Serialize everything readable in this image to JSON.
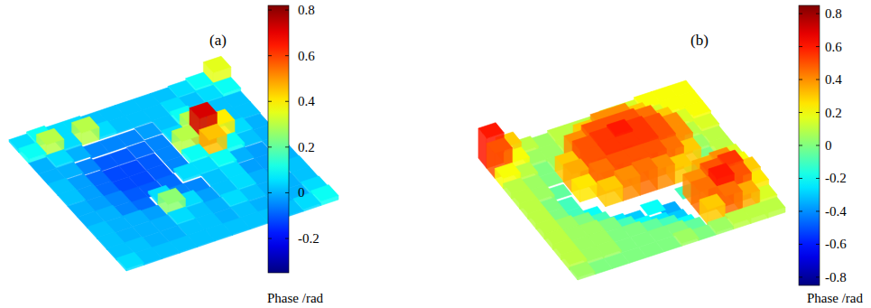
{
  "chart_data": [
    {
      "type": "surface",
      "label": "(a)",
      "cells": [
        [
          0.05,
          0.1,
          0.05,
          0.05,
          0.02,
          0.02,
          0.02,
          0.02,
          0.02,
          0.05,
          0.1,
          0.35
        ],
        [
          0.1,
          0.3,
          0.05,
          0.3,
          0.05,
          0.02,
          0.02,
          0.02,
          0.05,
          0.02,
          0.05,
          0.1
        ],
        [
          0.0,
          0.05,
          0.0,
          -0.05,
          -0.05,
          -0.05,
          -0.02,
          0.02,
          0.1,
          0.05,
          0.02,
          0.02
        ],
        [
          0.0,
          0.0,
          -0.05,
          -0.1,
          -0.1,
          -0.08,
          -0.05,
          0.05,
          0.3,
          0.1,
          0.02,
          0.02
        ],
        [
          0.02,
          -0.02,
          -0.08,
          -0.12,
          -0.12,
          -0.1,
          -0.05,
          0.3,
          0.72,
          0.4,
          0.05,
          0.0
        ],
        [
          0.02,
          -0.02,
          -0.08,
          -0.12,
          -0.12,
          -0.1,
          -0.05,
          0.1,
          0.45,
          0.1,
          0.02,
          0.0
        ],
        [
          0.0,
          -0.02,
          -0.05,
          -0.1,
          -0.1,
          -0.08,
          0.05,
          0.05,
          0.1,
          0.0,
          -0.02,
          0.0
        ],
        [
          0.0,
          0.0,
          -0.05,
          -0.08,
          0.05,
          -0.05,
          -0.05,
          0.02,
          0.05,
          -0.02,
          -0.02,
          0.0
        ],
        [
          0.02,
          0.0,
          0.0,
          -0.02,
          0.25,
          0.05,
          -0.02,
          0.02,
          0.05,
          0.0,
          -0.02,
          0.02
        ],
        [
          0.02,
          0.0,
          0.0,
          0.0,
          0.05,
          0.02,
          0.0,
          0.05,
          0.02,
          0.0,
          0.0,
          0.02
        ],
        [
          0.02,
          0.02,
          0.0,
          0.0,
          0.02,
          0.02,
          0.0,
          0.02,
          0.0,
          0.0,
          0.0,
          0.05
        ],
        [
          0.05,
          0.02,
          0.02,
          0.02,
          0.02,
          0.02,
          0.02,
          0.02,
          0.02,
          0.02,
          0.05,
          0.1
        ]
      ],
      "colorbar": {
        "range": [
          -0.35,
          0.82
        ],
        "ticks": [
          -0.2,
          0,
          0.2,
          0.4,
          0.6,
          0.8
        ],
        "label": "Phase /rad"
      }
    },
    {
      "type": "surface",
      "label": "(b)",
      "cells": [
        [
          0.6,
          0.3,
          0.1,
          0.05,
          0.1,
          0.1,
          0.1,
          0.15,
          0.15,
          0.2,
          0.2,
          0.2
        ],
        [
          0.5,
          0.2,
          0.05,
          0.05,
          0.1,
          0.3,
          0.4,
          0.4,
          0.3,
          0.15,
          0.2,
          0.2
        ],
        [
          0.2,
          0.1,
          0.0,
          0.05,
          0.4,
          0.5,
          0.5,
          0.5,
          0.45,
          0.3,
          0.15,
          0.2
        ],
        [
          0.1,
          0.05,
          0.0,
          0.3,
          0.5,
          0.55,
          0.6,
          0.55,
          0.5,
          0.4,
          0.1,
          0.15
        ],
        [
          0.1,
          0.05,
          -0.05,
          0.35,
          0.5,
          0.55,
          0.55,
          0.55,
          0.5,
          0.4,
          0.05,
          0.1
        ],
        [
          0.1,
          0.0,
          -0.1,
          0.25,
          0.45,
          0.5,
          0.5,
          0.5,
          0.45,
          0.3,
          0.0,
          0.1
        ],
        [
          0.1,
          0.0,
          -0.1,
          -0.2,
          0.3,
          0.4,
          0.45,
          0.4,
          0.3,
          0.0,
          0.1,
          0.15
        ],
        [
          0.1,
          0.05,
          0.0,
          -0.1,
          -0.25,
          -0.3,
          -0.2,
          -0.35,
          -0.1,
          0.35,
          0.4,
          0.2
        ],
        [
          0.1,
          0.05,
          0.05,
          0.0,
          -0.1,
          -0.2,
          -0.25,
          -0.3,
          0.4,
          0.5,
          0.55,
          0.3
        ],
        [
          0.1,
          0.05,
          0.05,
          0.0,
          0.0,
          -0.05,
          -0.1,
          -0.2,
          0.45,
          0.6,
          0.5,
          0.25
        ],
        [
          0.1,
          0.05,
          0.05,
          0.0,
          0.0,
          0.0,
          0.0,
          -0.05,
          0.3,
          0.45,
          0.35,
          0.15
        ],
        [
          0.05,
          0.0,
          0.0,
          0.0,
          0.0,
          0.0,
          0.05,
          0.0,
          0.05,
          0.1,
          0.1,
          0.1
        ]
      ],
      "colorbar": {
        "range": [
          -0.85,
          0.85
        ],
        "ticks": [
          -0.8,
          -0.6,
          -0.4,
          -0.2,
          0,
          0.2,
          0.4,
          0.6,
          0.8
        ],
        "label": "Phase /rad"
      }
    }
  ]
}
